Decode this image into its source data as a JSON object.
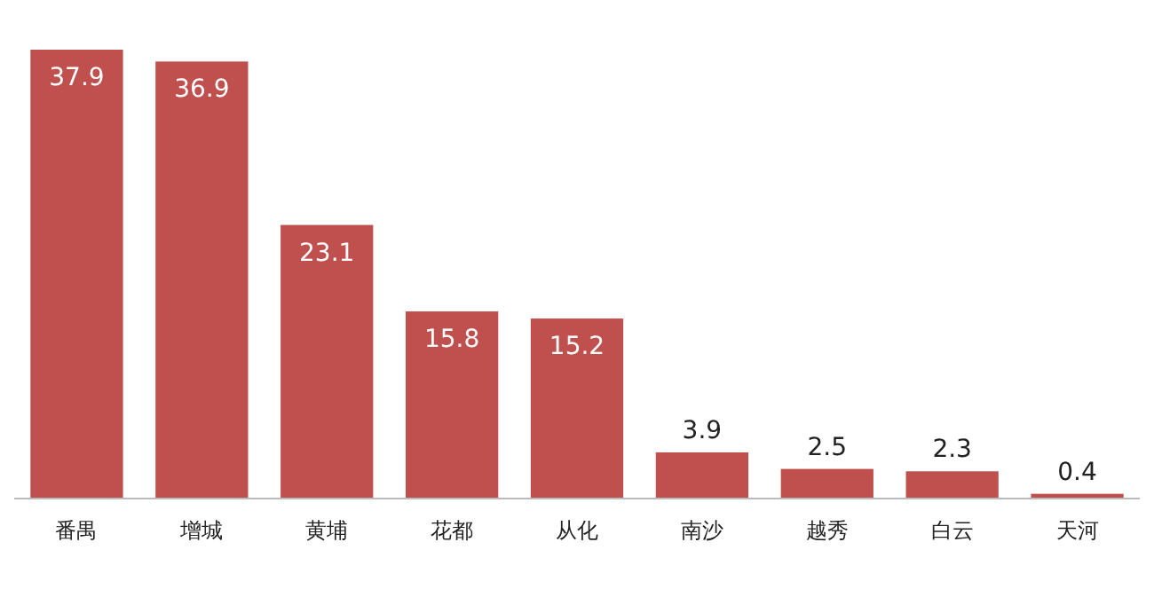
{
  "chart_data": {
    "type": "bar",
    "categories": [
      "番禺",
      "增城",
      "黄埔",
      "花都",
      "从化",
      "南沙",
      "越秀",
      "白云",
      "天河"
    ],
    "values": [
      37.9,
      36.9,
      23.1,
      15.8,
      15.2,
      3.9,
      2.5,
      2.3,
      0.4
    ],
    "color": "#c0504d",
    "data_labels": true
  }
}
